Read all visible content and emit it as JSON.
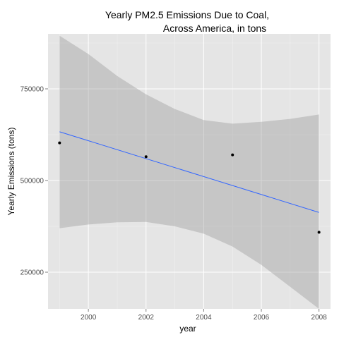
{
  "chart_data": {
    "type": "scatter",
    "title_line1": "Yearly PM2.5 Emissions Due to Coal,",
    "title_line2": "Across America, in tons",
    "xlabel": "year",
    "ylabel": "Yearly Emissions (tons)",
    "xlim": [
      1998.6,
      2008.4
    ],
    "ylim": [
      150000,
      900000
    ],
    "x_ticks": [
      2000,
      2002,
      2004,
      2006,
      2008
    ],
    "x_tick_labels": [
      "2000",
      "2002",
      "2004",
      "2006",
      "2008"
    ],
    "y_ticks": [
      250000,
      500000,
      750000
    ],
    "y_tick_labels": [
      "250000",
      "500000",
      "750000"
    ],
    "grid": true,
    "series": [
      {
        "x": [
          1999,
          2002,
          2005,
          2008
        ],
        "y": [
          602600,
          565000,
          570000,
          359000
        ]
      }
    ],
    "trend": {
      "method": "lm",
      "x": [
        1999,
        2008
      ],
      "y": [
        633000,
        413000
      ],
      "line_color": "#3366FF",
      "band_color": "#999999",
      "confidence_band": [
        {
          "x": 1999,
          "lower": 370000,
          "upper": 895000
        },
        {
          "x": 2000,
          "lower": 380000,
          "upper": 845000
        },
        {
          "x": 2001,
          "lower": 386000,
          "upper": 785000
        },
        {
          "x": 2002,
          "lower": 387000,
          "upper": 735000
        },
        {
          "x": 2003,
          "lower": 375000,
          "upper": 695000
        },
        {
          "x": 2004,
          "lower": 355000,
          "upper": 665000
        },
        {
          "x": 2005,
          "lower": 320000,
          "upper": 655000
        },
        {
          "x": 2006,
          "lower": 270000,
          "upper": 660000
        },
        {
          "x": 2007,
          "lower": 210000,
          "upper": 668000
        },
        {
          "x": 2008,
          "lower": 150000,
          "upper": 680000
        }
      ]
    },
    "colors": {
      "panel_background": "#E5E5E5",
      "major_grid": "#FFFFFF",
      "minor_grid": "#F2F2F2",
      "points": "#000000",
      "tick_label": "#4D4D4D",
      "tick_mark": "#7F7F7F"
    }
  }
}
